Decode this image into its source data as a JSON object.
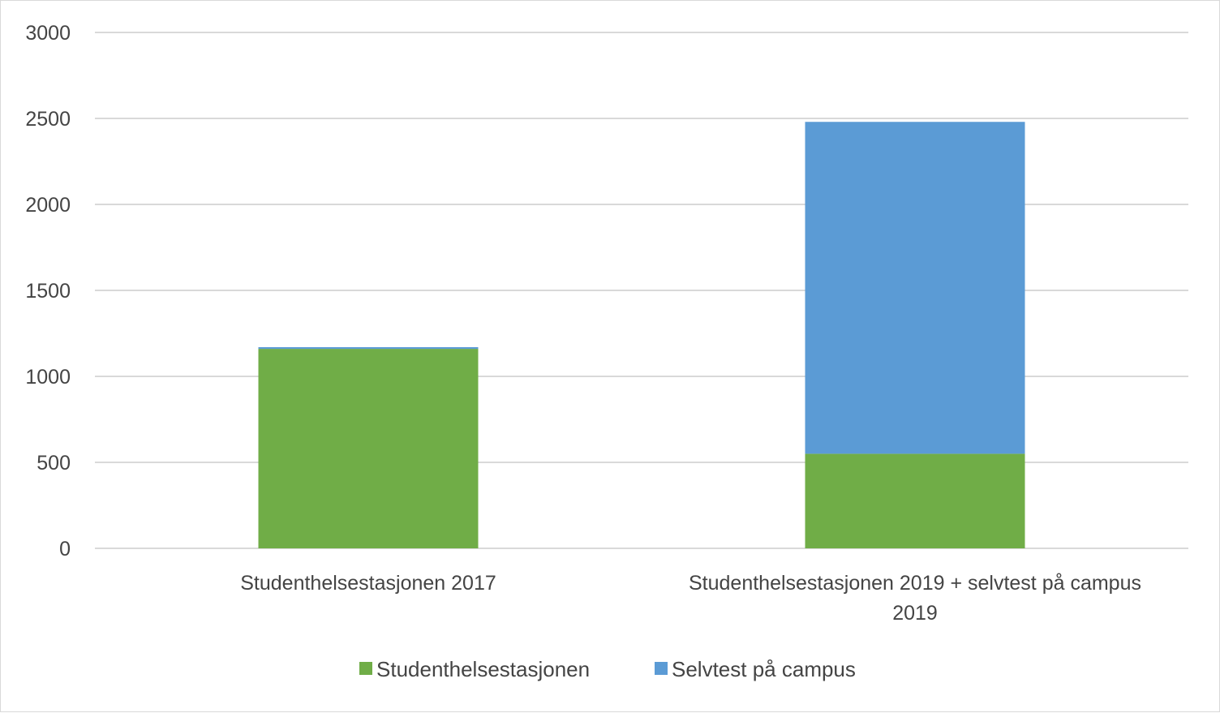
{
  "chart_data": {
    "type": "bar",
    "stacked": true,
    "categories": [
      [
        "Studenthelsestasjonen 2017"
      ],
      [
        "Studenthelsestasjonen 2019 + selvtest på campus",
        "2019"
      ]
    ],
    "series": [
      {
        "name": "Studenthelsestasjonen",
        "values": [
          1160,
          550
        ],
        "color": "#70AD47"
      },
      {
        "name": "Selvtest på campus",
        "values": [
          10,
          1930
        ],
        "color": "#5B9BD5"
      }
    ],
    "ylim": [
      0,
      3000
    ],
    "yticks": [
      0,
      500,
      1000,
      1500,
      2000,
      2500,
      3000
    ],
    "grid": true,
    "legend": "bottom",
    "xlabel": "",
    "ylabel": ""
  }
}
